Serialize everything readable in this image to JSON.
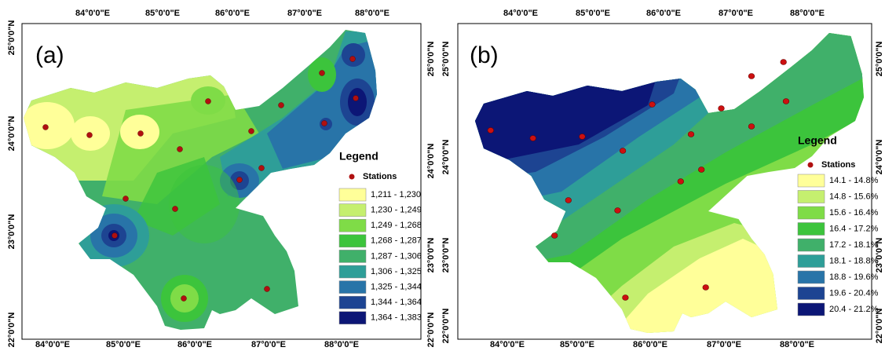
{
  "panels": [
    {
      "label": "(a)",
      "top_labels": [
        "84°0'0\"E",
        "85°0'0\"E",
        "86°0'0\"E",
        "87°0'0\"E",
        "88°0'0\"E"
      ],
      "bottom_labels": [
        "84°0'0\"E",
        "85°0'0\"E",
        "86°0'0\"E",
        "87°0'0\"E",
        "88°0'0\"E"
      ],
      "left_labels": [
        "25°0'0\"N",
        "24°0'0\"N",
        "23°0'0\"N",
        "22°0'0\"N"
      ],
      "right_labels": [
        "25°0'0\"N",
        "24°0'0\"N",
        "23°0'0\"N",
        "22°0'0\"N"
      ],
      "legend": {
        "title": "Legend",
        "stations": "Stations",
        "classes": [
          {
            "label": "1,211 - 1,230",
            "color": "#ffff99"
          },
          {
            "label": "1,230 - 1,249",
            "color": "#c5ef6f"
          },
          {
            "label": "1,249 - 1,268",
            "color": "#7fdc47"
          },
          {
            "label": "1,268 - 1,287",
            "color": "#3cc43c"
          },
          {
            "label": "1,287 - 1,306",
            "color": "#40b06a"
          },
          {
            "label": "1,306 - 1,325",
            "color": "#2e9e98"
          },
          {
            "label": "1,325 - 1,344",
            "color": "#2874a8"
          },
          {
            "label": "1,344 - 1,364",
            "color": "#1d4492"
          },
          {
            "label": "1,364 - 1,383",
            "color": "#0c1676"
          }
        ]
      }
    },
    {
      "label": "(b)",
      "top_labels": [
        "84°0'0\"E",
        "85°0'0\"E",
        "86°0'0\"E",
        "87°0'0\"E",
        "88°0'0\"E"
      ],
      "bottom_labels": [
        "84°0'0\"E",
        "85°0'0\"E",
        "86°0'0\"E",
        "87°0'0\"E",
        "88°0'0\"E"
      ],
      "left_labels": [
        "25°0'0\"N",
        "24°0'0\"N",
        "23°0'0\"N",
        "22°0'0\"N"
      ],
      "right_labels": [
        "25°0'0\"N",
        "24°0'0\"N",
        "23°0'0\"N",
        "22°0'0\"N"
      ],
      "legend": {
        "title": "Legend",
        "stations": "Stations",
        "classes": [
          {
            "label": "14.1 - 14.8%",
            "color": "#ffff99"
          },
          {
            "label": "14.8 - 15.6%",
            "color": "#c5ef6f"
          },
          {
            "label": "15.6 - 16.4%",
            "color": "#7fdc47"
          },
          {
            "label": "16.4 - 17.2%",
            "color": "#3cc43c"
          },
          {
            "label": "17.2 - 18.1%",
            "color": "#40b06a"
          },
          {
            "label": "18.1 - 18.8%",
            "color": "#2e9e98"
          },
          {
            "label": "18.8 - 19.6%",
            "color": "#2874a8"
          },
          {
            "label": "19.6 - 20.4%",
            "color": "#1d4492"
          },
          {
            "label": "20.4 - 21.2%",
            "color": "#0c1676"
          }
        ]
      }
    }
  ]
}
